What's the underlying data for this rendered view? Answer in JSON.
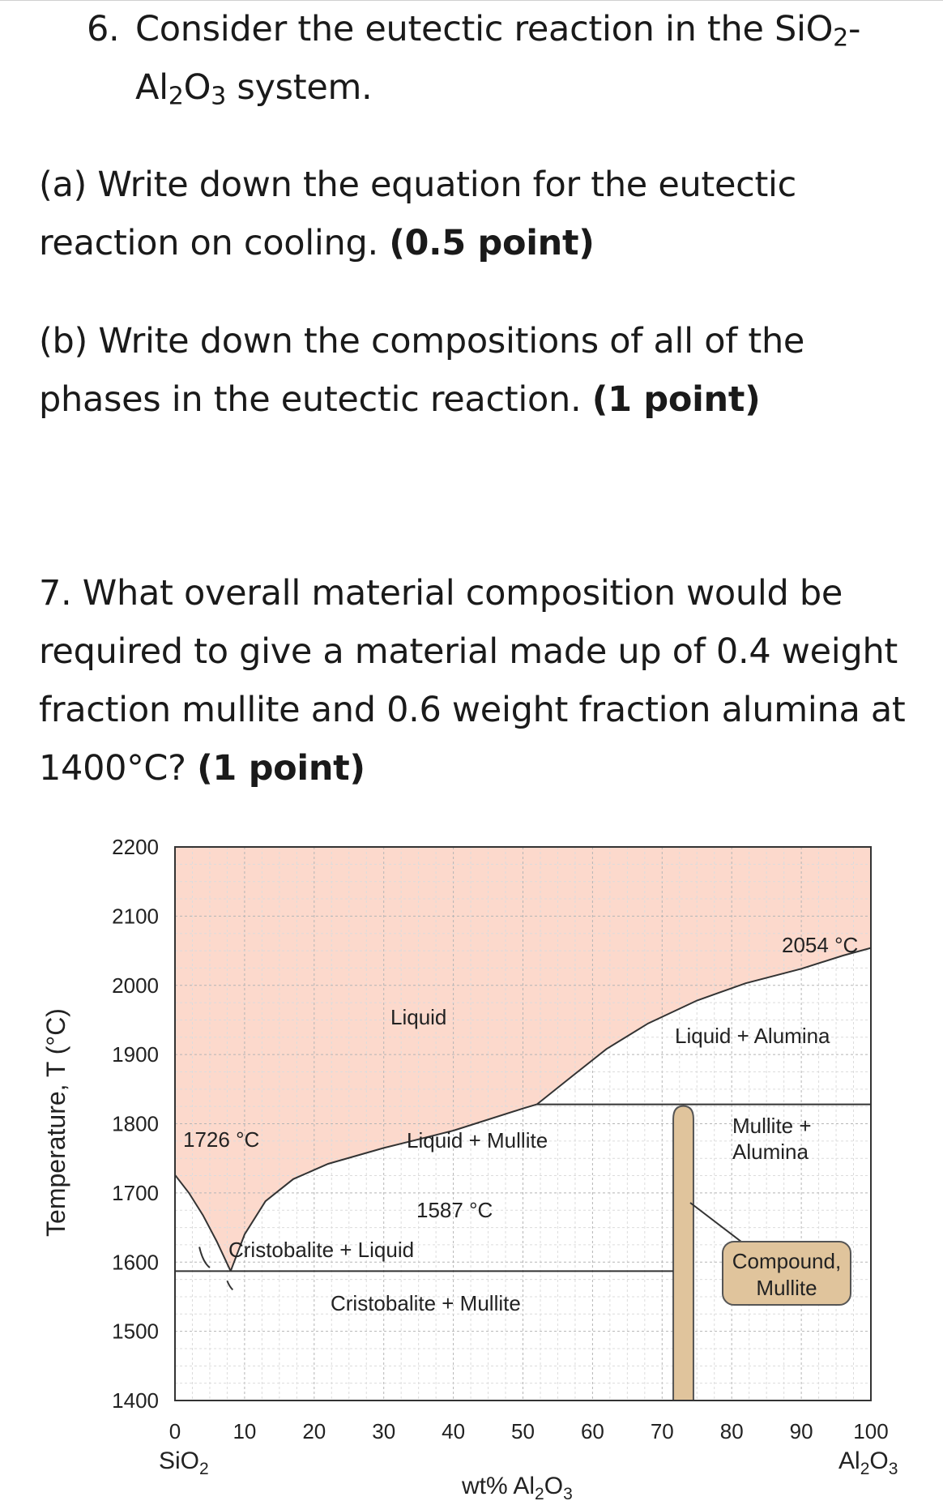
{
  "questions": {
    "q6": {
      "number": "6.",
      "line1_pre": "Consider the eutectic reaction in the SiO",
      "line1_sub": "2",
      "line1_post": "-",
      "line2_a": "Al",
      "line2_sub1": "2",
      "line2_b": "O",
      "line2_sub2": "3",
      "line2_post": " system."
    },
    "qa": {
      "line1": "(a) Write down the equation for the eutectic",
      "line2": "reaction on cooling.",
      "points": "(0.5 point)"
    },
    "qb": {
      "line1": "(b) Write down the compositions of all of the",
      "line2": "phases in the eutectic reaction.",
      "points": "(1 point)"
    },
    "q7": {
      "line1": "7. What overall material composition would be",
      "line2": "required to give a material made up of 0.4 weight",
      "line3": "fraction mullite and 0.6 weight fraction alumina at",
      "line4": "1400°C?",
      "points": "(1 point)"
    }
  },
  "chart_data": {
    "type": "phase_diagram",
    "xlabel_pre": "wt% Al",
    "xlabel_sub1": "2",
    "xlabel_mid": "O",
    "xlabel_sub2": "3",
    "ylabel": "Temperature, T  (°C)",
    "x_ticks": [
      "0",
      "10",
      "20",
      "30",
      "40",
      "50",
      "60",
      "70",
      "80",
      "90",
      "100"
    ],
    "y_ticks": [
      "2200",
      "2100",
      "2000",
      "1900",
      "1800",
      "1700",
      "1600",
      "1500",
      "1400"
    ],
    "xlim": [
      0,
      100
    ],
    "ylim": [
      1400,
      2200
    ],
    "left_end_pre": "SiO",
    "left_end_sub": "2",
    "right_end_pre": "Al",
    "right_end_sub1": "2",
    "right_end_mid": "O",
    "right_end_sub2": "3",
    "liquid_color": "#fcd9cc",
    "mullite_color": "#e0c49c",
    "labels": {
      "liquid": "Liquid",
      "liquid_alumina": "Liquid + Alumina",
      "liquid_mullite": "Liquid + Mullite",
      "mullite_alumina_1": "Mullite +",
      "mullite_alumina_2": "Alumina",
      "cristobalite_liquid": "Cristobalite + Liquid",
      "cristobalite_mullite": "Cristobalite + Mullite",
      "compound_1": "Compound,",
      "compound_2": "Mullite",
      "t_sio2_melt": "1726 °C",
      "t_eutectic": "1587 °C",
      "t_al2o3_melt": "2054 °C"
    },
    "key_points": {
      "sio2_melting_point": [
        0,
        1726
      ],
      "eutectic": [
        8,
        1587
      ],
      "eutectic_isotherm_end": [
        71.6,
        1587
      ],
      "peritectic_isotherm": [
        [
          52,
          1828
        ],
        [
          100,
          1828
        ]
      ],
      "alumina_melting_point": [
        100,
        2054
      ],
      "mullite_band": [
        71.6,
        74.5
      ]
    }
  }
}
